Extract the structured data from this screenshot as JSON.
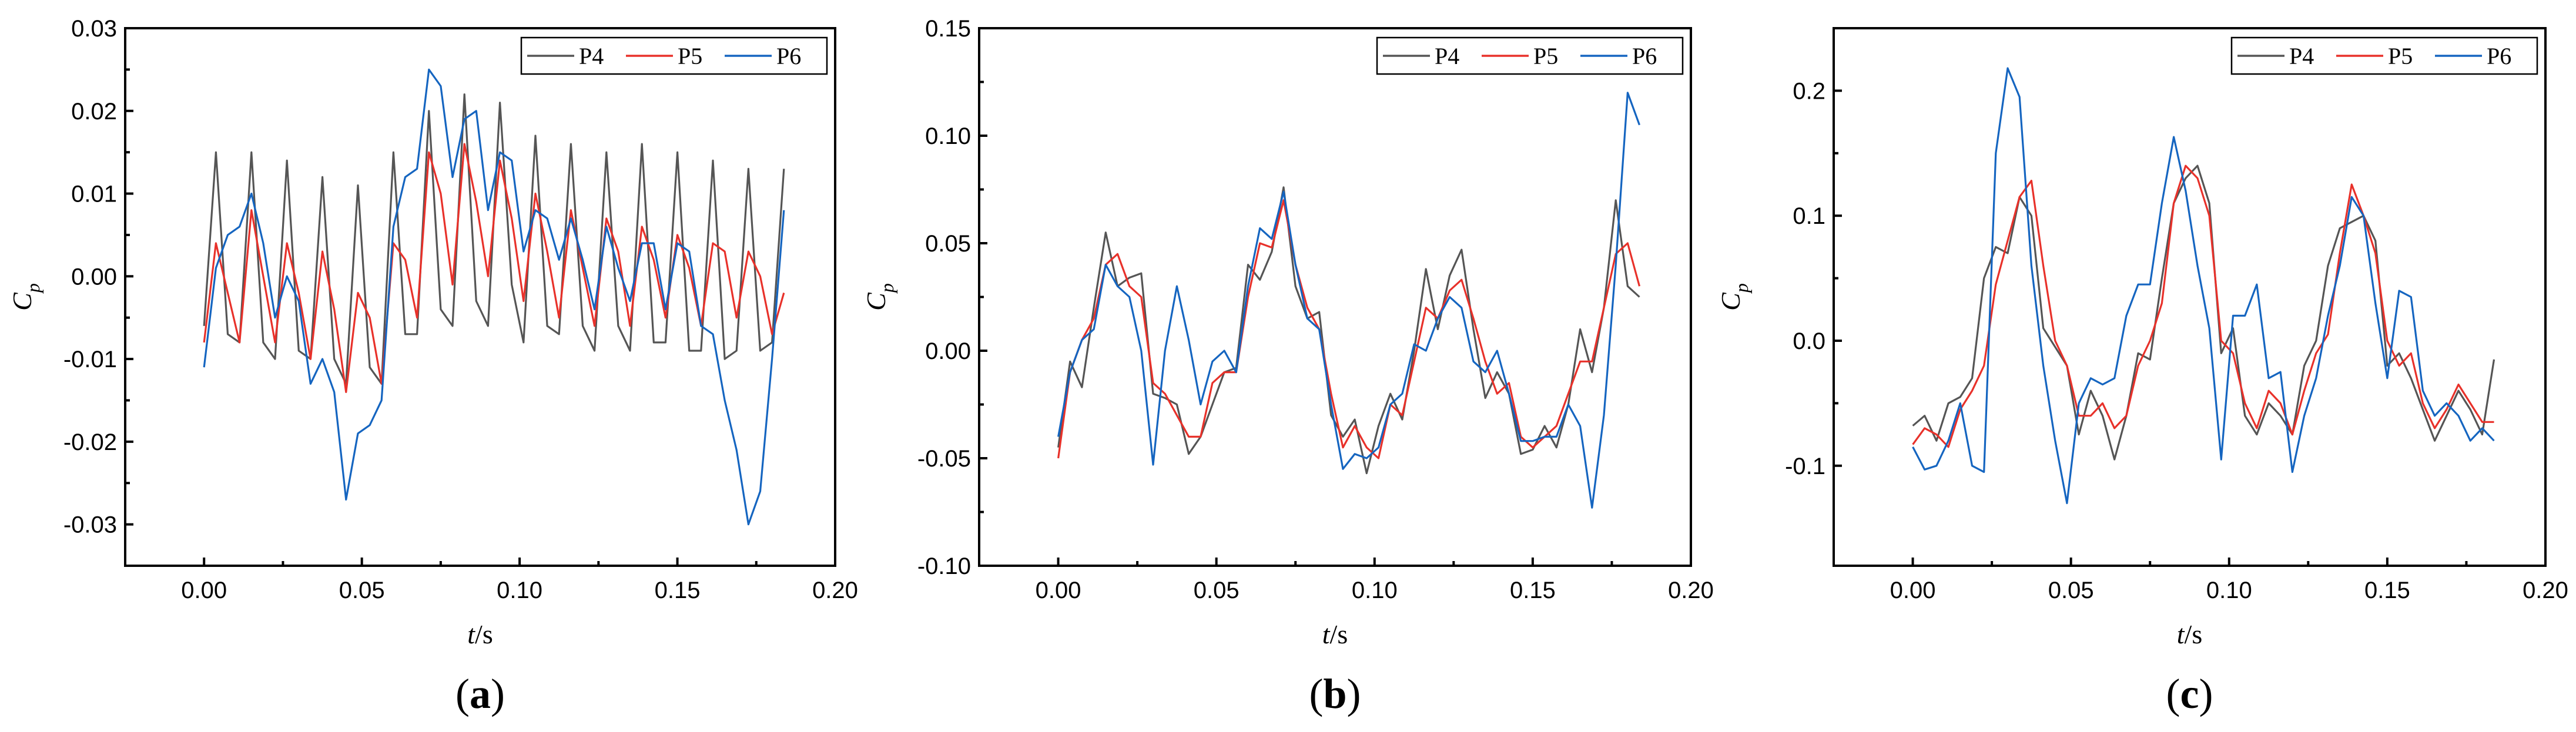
{
  "chart_data": [
    {
      "type": "line",
      "panel_label": "a",
      "xlabel": "t/s",
      "ylabel": "Cp",
      "xlim": [
        -0.025,
        0.2
      ],
      "ylim": [
        -0.035,
        0.03
      ],
      "xticks": [
        0.0,
        0.05,
        0.1,
        0.15,
        0.2
      ],
      "xtick_labels": [
        "0.00",
        "0.05",
        "0.10",
        "0.15",
        "0.20"
      ],
      "yticks": [
        -0.03,
        -0.02,
        -0.01,
        0.0,
        0.01,
        0.02,
        0.03
      ],
      "ytick_labels": [
        "-0.03",
        "-0.02",
        "-0.01",
        "0.00",
        "0.01",
        "0.02",
        "0.03"
      ],
      "legend_position": "top-right",
      "x_start": 0.0,
      "x_step": 0.00375,
      "series": [
        {
          "name": "P4",
          "color": "#555555",
          "values": [
            -0.006,
            0.015,
            -0.007,
            -0.008,
            0.015,
            -0.008,
            -0.01,
            0.014,
            -0.009,
            -0.01,
            0.012,
            -0.01,
            -0.013,
            0.011,
            -0.011,
            -0.013,
            0.015,
            -0.007,
            -0.007,
            0.02,
            -0.004,
            -0.006,
            0.022,
            -0.003,
            -0.006,
            0.021,
            -0.001,
            -0.008,
            0.017,
            -0.006,
            -0.007,
            0.016,
            -0.006,
            -0.009,
            0.015,
            -0.006,
            -0.009,
            0.016,
            -0.008,
            -0.008,
            0.015,
            -0.009,
            -0.009,
            0.014,
            -0.01,
            -0.009,
            0.013,
            -0.009,
            -0.008,
            0.013
          ]
        },
        {
          "name": "P5",
          "color": "#e8312a",
          "values": [
            -0.008,
            0.004,
            -0.002,
            -0.008,
            0.008,
            0.0,
            -0.008,
            0.004,
            -0.002,
            -0.01,
            0.003,
            -0.004,
            -0.014,
            -0.002,
            -0.005,
            -0.013,
            0.004,
            0.002,
            -0.005,
            0.015,
            0.01,
            -0.001,
            0.016,
            0.009,
            0.0,
            0.014,
            0.007,
            -0.003,
            0.01,
            0.003,
            -0.005,
            0.008,
            0.001,
            -0.006,
            0.007,
            0.003,
            -0.006,
            0.006,
            0.002,
            -0.005,
            0.005,
            0.001,
            -0.006,
            0.004,
            0.003,
            -0.005,
            0.003,
            0.0,
            -0.007,
            -0.002
          ]
        },
        {
          "name": "P6",
          "color": "#1565c0",
          "values": [
            -0.011,
            0.001,
            0.005,
            0.006,
            0.01,
            0.004,
            -0.005,
            0.0,
            -0.003,
            -0.013,
            -0.01,
            -0.014,
            -0.027,
            -0.019,
            -0.018,
            -0.015,
            0.006,
            0.012,
            0.013,
            0.025,
            0.023,
            0.012,
            0.019,
            0.02,
            0.008,
            0.015,
            0.014,
            0.003,
            0.008,
            0.007,
            0.002,
            0.007,
            0.002,
            -0.004,
            0.006,
            0.001,
            -0.003,
            0.004,
            0.004,
            -0.004,
            0.004,
            0.003,
            -0.006,
            -0.007,
            -0.015,
            -0.021,
            -0.03,
            -0.026,
            -0.01,
            0.008
          ]
        }
      ]
    },
    {
      "type": "line",
      "panel_label": "b",
      "xlabel": "t/s",
      "ylabel": "Cp",
      "xlim": [
        -0.025,
        0.2
      ],
      "ylim": [
        -0.1,
        0.15
      ],
      "xticks": [
        0.0,
        0.05,
        0.1,
        0.15,
        0.2
      ],
      "xtick_labels": [
        "0.00",
        "0.05",
        "0.10",
        "0.15",
        "0.20"
      ],
      "yticks": [
        -0.1,
        -0.05,
        0.0,
        0.05,
        0.1,
        0.15
      ],
      "ytick_labels": [
        "-0.10",
        "-0.05",
        "0.00",
        "0.05",
        "0.10",
        "0.15"
      ],
      "legend_position": "top-right",
      "x_start": 0.0,
      "x_step": 0.00375,
      "series": [
        {
          "name": "P4",
          "color": "#555555",
          "values": [
            -0.045,
            -0.005,
            -0.017,
            0.02,
            0.055,
            0.03,
            0.034,
            0.036,
            -0.02,
            -0.022,
            -0.025,
            -0.048,
            -0.04,
            -0.025,
            -0.01,
            -0.008,
            0.04,
            0.033,
            0.046,
            0.076,
            0.03,
            0.015,
            0.018,
            -0.03,
            -0.04,
            -0.032,
            -0.057,
            -0.035,
            -0.02,
            -0.032,
            0.0,
            0.038,
            0.01,
            0.035,
            0.047,
            0.01,
            -0.022,
            -0.01,
            -0.02,
            -0.048,
            -0.046,
            -0.035,
            -0.045,
            -0.025,
            0.01,
            -0.01,
            0.02,
            0.07,
            0.03,
            0.025
          ]
        },
        {
          "name": "P5",
          "color": "#e8312a",
          "values": [
            -0.05,
            -0.01,
            0.005,
            0.015,
            0.04,
            0.045,
            0.03,
            0.025,
            -0.015,
            -0.02,
            -0.03,
            -0.04,
            -0.04,
            -0.015,
            -0.01,
            -0.01,
            0.025,
            0.05,
            0.048,
            0.07,
            0.04,
            0.02,
            0.01,
            -0.02,
            -0.045,
            -0.035,
            -0.045,
            -0.05,
            -0.025,
            -0.03,
            -0.005,
            0.02,
            0.015,
            0.028,
            0.033,
            0.015,
            -0.005,
            -0.02,
            -0.015,
            -0.04,
            -0.045,
            -0.04,
            -0.035,
            -0.02,
            -0.005,
            -0.005,
            0.02,
            0.045,
            0.05,
            0.03
          ]
        },
        {
          "name": "P6",
          "color": "#1565c0",
          "values": [
            -0.04,
            -0.01,
            0.005,
            0.01,
            0.04,
            0.03,
            0.025,
            0.0,
            -0.053,
            0.0,
            0.03,
            0.005,
            -0.025,
            -0.005,
            0.0,
            -0.01,
            0.03,
            0.057,
            0.052,
            0.074,
            0.04,
            0.015,
            0.01,
            -0.025,
            -0.055,
            -0.048,
            -0.05,
            -0.045,
            -0.025,
            -0.02,
            0.003,
            0.0,
            0.015,
            0.025,
            0.02,
            -0.005,
            -0.01,
            0.0,
            -0.02,
            -0.042,
            -0.042,
            -0.04,
            -0.04,
            -0.025,
            -0.035,
            -0.073,
            -0.03,
            0.04,
            0.12,
            0.105
          ]
        }
      ]
    },
    {
      "type": "line",
      "panel_label": "c",
      "xlabel": "t/s",
      "ylabel": "Cp",
      "xlim": [
        -0.025,
        0.2
      ],
      "ylim": [
        -0.18,
        0.25
      ],
      "xticks": [
        0.0,
        0.05,
        0.1,
        0.15,
        0.2
      ],
      "xtick_labels": [
        "0.00",
        "0.05",
        "0.10",
        "0.15",
        "0.20"
      ],
      "yticks": [
        -0.1,
        0.0,
        0.1,
        0.2
      ],
      "ytick_labels": [
        "-0.1",
        "0.0",
        "0.1",
        "0.2"
      ],
      "legend_position": "top-right",
      "x_start": 0.0,
      "x_step": 0.00375,
      "series": [
        {
          "name": "P4",
          "color": "#555555",
          "values": [
            -0.068,
            -0.06,
            -0.08,
            -0.05,
            -0.045,
            -0.03,
            0.05,
            0.075,
            0.07,
            0.115,
            0.1,
            0.01,
            -0.005,
            -0.02,
            -0.075,
            -0.04,
            -0.06,
            -0.095,
            -0.06,
            -0.01,
            -0.015,
            0.05,
            0.11,
            0.13,
            0.14,
            0.11,
            -0.01,
            0.01,
            -0.06,
            -0.075,
            -0.05,
            -0.06,
            -0.075,
            -0.02,
            0.0,
            0.06,
            0.09,
            0.095,
            0.1,
            0.08,
            -0.02,
            -0.01,
            -0.03,
            -0.055,
            -0.08,
            -0.06,
            -0.04,
            -0.055,
            -0.075,
            -0.015
          ]
        },
        {
          "name": "P5",
          "color": "#e8312a",
          "values": [
            -0.083,
            -0.07,
            -0.075,
            -0.085,
            -0.055,
            -0.04,
            -0.02,
            0.045,
            0.08,
            0.115,
            0.128,
            0.06,
            0.0,
            -0.02,
            -0.06,
            -0.06,
            -0.05,
            -0.07,
            -0.06,
            -0.02,
            0.0,
            0.03,
            0.11,
            0.14,
            0.13,
            0.1,
            0.0,
            -0.01,
            -0.05,
            -0.07,
            -0.04,
            -0.05,
            -0.075,
            -0.04,
            -0.01,
            0.005,
            0.07,
            0.125,
            0.1,
            0.07,
            0.0,
            -0.02,
            -0.01,
            -0.05,
            -0.07,
            -0.055,
            -0.035,
            -0.05,
            -0.065,
            -0.065
          ]
        },
        {
          "name": "P6",
          "color": "#1565c0",
          "values": [
            -0.085,
            -0.103,
            -0.1,
            -0.08,
            -0.05,
            -0.1,
            -0.105,
            0.15,
            0.218,
            0.195,
            0.06,
            -0.02,
            -0.08,
            -0.13,
            -0.05,
            -0.03,
            -0.035,
            -0.03,
            0.02,
            0.045,
            0.045,
            0.11,
            0.163,
            0.12,
            0.06,
            0.01,
            -0.095,
            0.02,
            0.02,
            0.045,
            -0.03,
            -0.025,
            -0.105,
            -0.06,
            -0.03,
            0.02,
            0.06,
            0.115,
            0.1,
            0.03,
            -0.03,
            0.04,
            0.035,
            -0.04,
            -0.06,
            -0.05,
            -0.06,
            -0.08,
            -0.07,
            -0.08
          ]
        }
      ]
    }
  ]
}
